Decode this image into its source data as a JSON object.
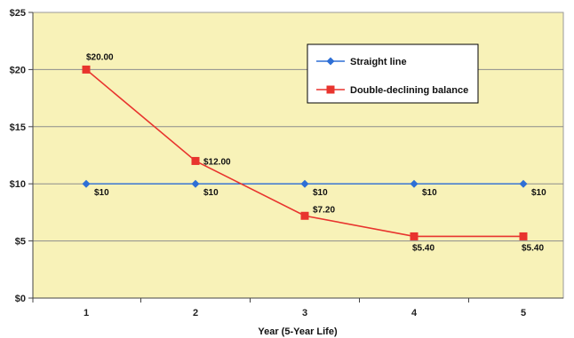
{
  "chart_data": {
    "type": "line",
    "title": "",
    "xlabel": "Year (5-Year Life)",
    "ylabel": "",
    "categories": [
      "1",
      "2",
      "3",
      "4",
      "5"
    ],
    "ylim": [
      0,
      25
    ],
    "yticks": [
      0,
      5,
      10,
      15,
      20,
      25
    ],
    "ytick_labels": [
      "$0",
      "$5",
      "$10",
      "$15",
      "$20",
      "$25"
    ],
    "grid": true,
    "legend_position": "top-right",
    "background": "#f8f2b8",
    "series": [
      {
        "name": "Straight line",
        "color": "#2e6fd6",
        "marker": "diamond",
        "values": [
          10,
          10,
          10,
          10,
          10
        ],
        "labels": [
          "$10",
          "$10",
          "$10",
          "$10",
          "$10"
        ]
      },
      {
        "name": "Double-declining balance",
        "color": "#e8342e",
        "marker": "square",
        "values": [
          20,
          12,
          7.2,
          5.4,
          5.4
        ],
        "labels": [
          "$20.00",
          "$12.00",
          "$7.20",
          "$5.40",
          "$5.40"
        ]
      }
    ]
  }
}
